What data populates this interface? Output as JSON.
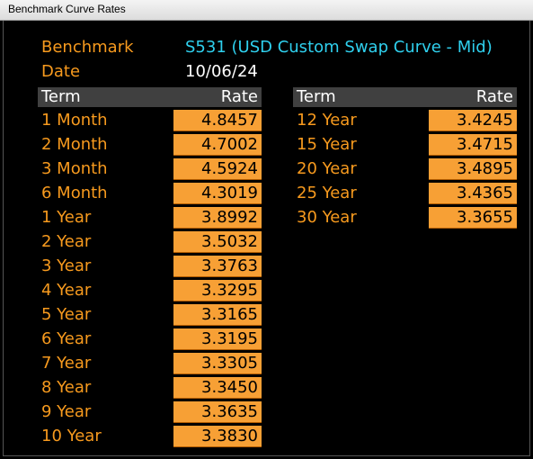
{
  "window": {
    "title": "Benchmark Curve Rates"
  },
  "header": {
    "benchmark_label": "Benchmark",
    "benchmark_value": "S531 (USD Custom Swap Curve - Mid)",
    "date_label": "Date",
    "date_value": "10/06/24"
  },
  "columns": {
    "term": "Term",
    "rate": "Rate"
  },
  "left_rows": [
    {
      "term": "1 Month",
      "rate": "4.8457"
    },
    {
      "term": "2 Month",
      "rate": "4.7002"
    },
    {
      "term": "3 Month",
      "rate": "4.5924"
    },
    {
      "term": "6 Month",
      "rate": "4.3019"
    },
    {
      "term": "1 Year",
      "rate": "3.8992"
    },
    {
      "term": "2 Year",
      "rate": "3.5032"
    },
    {
      "term": "3 Year",
      "rate": "3.3763"
    },
    {
      "term": "4 Year",
      "rate": "3.3295"
    },
    {
      "term": "5 Year",
      "rate": "3.3165"
    },
    {
      "term": "6 Year",
      "rate": "3.3195"
    },
    {
      "term": "7 Year",
      "rate": "3.3305"
    },
    {
      "term": "8 Year",
      "rate": "3.3450"
    },
    {
      "term": "9 Year",
      "rate": "3.3635"
    },
    {
      "term": "10 Year",
      "rate": "3.3830"
    }
  ],
  "right_rows": [
    {
      "term": "12 Year",
      "rate": "3.4245"
    },
    {
      "term": "15 Year",
      "rate": "3.4715"
    },
    {
      "term": "20 Year",
      "rate": "3.4895"
    },
    {
      "term": "25 Year",
      "rate": "3.4365"
    },
    {
      "term": "30 Year",
      "rate": "3.3655"
    }
  ],
  "colors": {
    "label_orange": "#f79a1e",
    "cell_orange": "#f7a035",
    "benchmark_cyan": "#2fd0ee",
    "header_gray": "#404040",
    "background": "#000000"
  }
}
